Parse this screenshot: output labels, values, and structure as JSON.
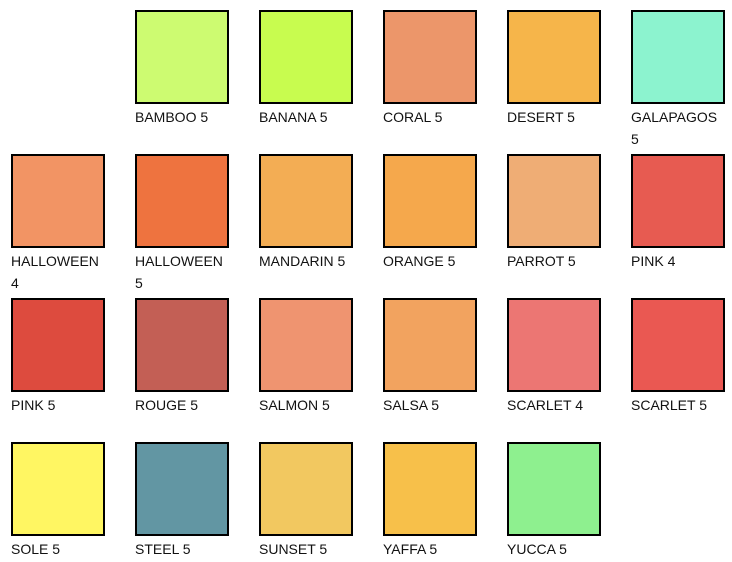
{
  "swatches": [
    {
      "label": "BAMBOO 5",
      "color": "#cdfb71"
    },
    {
      "label": "BANANA 5",
      "color": "#c8fc4f"
    },
    {
      "label": "CORAL 5",
      "color": "#ec966a"
    },
    {
      "label": "DESERT 5",
      "color": "#f6b54a"
    },
    {
      "label": "GALAPAGOS 5",
      "color": "#8cf3cf"
    },
    {
      "label": "HALLOWEEN 4",
      "color": "#f29464"
    },
    {
      "label": "HALLOWEEN 5",
      "color": "#ee733f"
    },
    {
      "label": "MANDARIN 5",
      "color": "#f3ad54"
    },
    {
      "label": "ORANGE 5",
      "color": "#f5a84c"
    },
    {
      "label": "PARROT 5",
      "color": "#efad75"
    },
    {
      "label": "PINK 4",
      "color": "#e75b51"
    },
    {
      "label": "PINK 5",
      "color": "#dd4b3e"
    },
    {
      "label": "ROUGE 5",
      "color": "#c35f55"
    },
    {
      "label": "SALMON 5",
      "color": "#ef9470"
    },
    {
      "label": "SALSA 5",
      "color": "#f2a35f"
    },
    {
      "label": "SCARLET 4",
      "color": "#ec7673"
    },
    {
      "label": "SCARLET 5",
      "color": "#ea5852"
    },
    {
      "label": "SOLE 5",
      "color": "#fff662"
    },
    {
      "label": "STEEL 5",
      "color": "#6296a3"
    },
    {
      "label": "SUNSET 5",
      "color": "#f2c860"
    },
    {
      "label": "YAFFA 5",
      "color": "#f7c04a"
    },
    {
      "label": "YUCCA 5",
      "color": "#8ef08f"
    }
  ]
}
